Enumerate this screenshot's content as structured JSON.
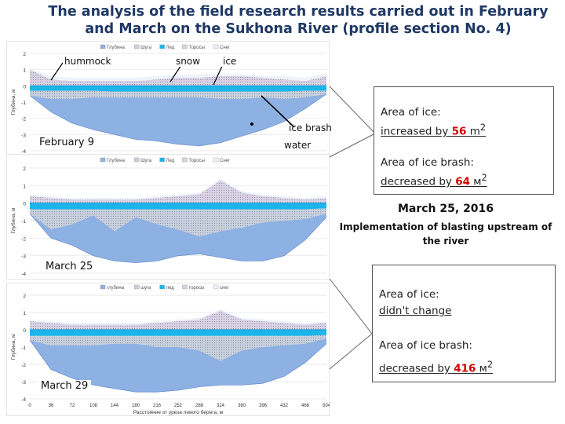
{
  "title": {
    "line1": "The analysis of the field research results carried out in February",
    "line2": "and March on the Sukhona River (profile section No. 4)"
  },
  "annotations": {
    "hummock": "hummock",
    "snow": "snow",
    "ice": "ice",
    "ice_brash": "ice brash",
    "water": "water"
  },
  "panels": {
    "feb9": "February 9",
    "mar25": "March 25",
    "mar29": "March 29"
  },
  "summary1": {
    "ice_label": "Area of ice:",
    "ice_pre": "increased by ",
    "ice_value": "56",
    "ice_unit": " m",
    "ice_sup": "2",
    "brash_label": "Area of ice brash:",
    "brash_pre": "decreased by ",
    "brash_value": "64",
    "brash_unit": " м",
    "brash_sup": "2"
  },
  "event": {
    "date": "March 25, 2016",
    "text": "Implementation of blasting upstream of the river"
  },
  "summary2": {
    "ice_label": "Area of ice:",
    "ice_status": "didn't change",
    "brash_label": "Area of ice brash:",
    "brash_pre": "decreased by ",
    "brash_value": "416",
    "brash_unit": " м",
    "brash_sup": "2"
  },
  "colors": {
    "depth": "#8eb1e3",
    "ice": "#1cb5ea",
    "ice_brash": "#c9d1de",
    "hummock": "#d8d2e4",
    "snow": "#eef3fb",
    "accent_red": "#d40000",
    "title": "#1f3864"
  },
  "chart_data": [
    {
      "type": "area",
      "panel": "February 9",
      "legend": [
        "Глубина",
        "Шуга",
        "Лед",
        "Торосы",
        "Снег"
      ],
      "ylabel": "Глубина, м",
      "ylim": [
        -4,
        2
      ],
      "yticks": [
        -4,
        -3,
        -2,
        -1,
        0,
        1,
        2
      ],
      "x": [
        0,
        36,
        72,
        108,
        144,
        180,
        216,
        252,
        288,
        324,
        360,
        396,
        432,
        468,
        504
      ],
      "series": [
        {
          "name": "Глубина",
          "values": [
            -0.6,
            -1.6,
            -2.3,
            -2.7,
            -3.0,
            -3.3,
            -3.4,
            -3.6,
            -3.7,
            -3.5,
            -3.1,
            -2.7,
            -2.2,
            -1.4,
            -0.5
          ]
        },
        {
          "name": "Шуга",
          "values": [
            -0.6,
            -0.8,
            -0.8,
            -0.7,
            -0.7,
            -0.7,
            -0.7,
            -0.7,
            -0.7,
            -0.8,
            -0.8,
            -0.7,
            -0.8,
            -0.7,
            -0.5
          ]
        },
        {
          "name": "Лед",
          "values": [
            -0.3,
            -0.3,
            -0.3,
            -0.3,
            -0.35,
            -0.35,
            -0.35,
            -0.35,
            -0.35,
            -0.35,
            -0.35,
            -0.35,
            -0.35,
            -0.3,
            -0.3
          ]
        },
        {
          "name": "Торосы",
          "values": [
            1.0,
            0.4,
            0.3,
            0.3,
            0.3,
            0.3,
            0.4,
            0.5,
            0.5,
            0.6,
            0.6,
            0.5,
            0.4,
            0.3,
            0.6
          ]
        },
        {
          "name": "Снег",
          "values": [
            1.1,
            0.6,
            0.5,
            0.5,
            0.5,
            0.5,
            0.6,
            0.7,
            0.7,
            0.8,
            0.7,
            0.6,
            0.6,
            0.5,
            0.8
          ]
        }
      ]
    },
    {
      "type": "area",
      "panel": "March 25",
      "legend": [
        "Глубина",
        "Шуга",
        "Лед",
        "Торосы",
        "Снег"
      ],
      "ylabel": "Глубина, м",
      "ylim": [
        -4,
        2
      ],
      "yticks": [
        -4,
        -3,
        -2,
        -1,
        0,
        1,
        2
      ],
      "x": [
        0,
        36,
        72,
        108,
        144,
        180,
        216,
        252,
        288,
        324,
        360,
        396,
        432,
        468,
        504
      ],
      "series": [
        {
          "name": "Глубина",
          "values": [
            -0.6,
            -2.0,
            -2.4,
            -3.0,
            -3.3,
            -3.4,
            -3.3,
            -3.0,
            -2.9,
            -3.1,
            -3.3,
            -3.3,
            -3.0,
            -2.1,
            -0.8
          ]
        },
        {
          "name": "Шуга",
          "values": [
            -0.6,
            -1.5,
            -1.2,
            -0.7,
            -1.6,
            -0.8,
            -1.2,
            -1.5,
            -1.9,
            -1.6,
            -1.4,
            -1.1,
            -1.0,
            -0.9,
            -0.6
          ]
        },
        {
          "name": "Лед",
          "values": [
            -0.35,
            -0.35,
            -0.35,
            -0.35,
            -0.35,
            -0.35,
            -0.35,
            -0.35,
            -0.35,
            -0.35,
            -0.35,
            -0.35,
            -0.35,
            -0.35,
            -0.3
          ]
        },
        {
          "name": "Торосы",
          "values": [
            0.4,
            0.3,
            0.2,
            0.2,
            0.2,
            0.2,
            0.3,
            0.4,
            0.5,
            1.3,
            0.6,
            0.4,
            0.3,
            0.2,
            0.3
          ]
        },
        {
          "name": "Снег",
          "values": [
            0.5,
            0.4,
            0.3,
            0.3,
            0.3,
            0.3,
            0.4,
            0.5,
            0.6,
            1.4,
            0.7,
            0.5,
            0.4,
            0.3,
            0.4
          ]
        }
      ]
    },
    {
      "type": "area",
      "panel": "March 29",
      "legend": [
        "глубина",
        "шуга",
        "лед",
        "торосы",
        "снег"
      ],
      "ylabel": "Глубина, м",
      "xlabel": "Расстояние от уреза левого берега, м",
      "ylim": [
        -4,
        2
      ],
      "yticks": [
        -4,
        -3,
        -2,
        -1,
        0,
        1,
        2
      ],
      "x": [
        0,
        36,
        72,
        108,
        144,
        180,
        216,
        252,
        288,
        324,
        360,
        396,
        432,
        468,
        504
      ],
      "xticks": [
        0,
        36,
        72,
        108,
        144,
        180,
        216,
        252,
        288,
        324,
        360,
        396,
        432,
        468,
        504
      ],
      "series": [
        {
          "name": "глубина",
          "values": [
            -0.6,
            -2.3,
            -2.8,
            -3.2,
            -3.4,
            -3.6,
            -3.6,
            -3.5,
            -3.3,
            -3.2,
            -3.2,
            -3.1,
            -2.7,
            -1.9,
            -0.8
          ]
        },
        {
          "name": "шуга",
          "values": [
            -0.6,
            -0.9,
            -0.9,
            -0.9,
            -0.8,
            -0.8,
            -1.0,
            -1.0,
            -1.2,
            -1.8,
            -1.2,
            -1.0,
            -0.9,
            -0.8,
            -0.5
          ]
        },
        {
          "name": "лед",
          "values": [
            -0.35,
            -0.35,
            -0.35,
            -0.35,
            -0.35,
            -0.35,
            -0.35,
            -0.35,
            -0.35,
            -0.35,
            -0.35,
            -0.35,
            -0.35,
            -0.35,
            -0.3
          ]
        },
        {
          "name": "торосы",
          "values": [
            0.5,
            0.4,
            0.3,
            0.3,
            0.3,
            0.3,
            0.4,
            0.5,
            0.6,
            1.1,
            0.6,
            0.5,
            0.4,
            0.3,
            0.4
          ]
        },
        {
          "name": "снег",
          "values": [
            0.6,
            0.5,
            0.4,
            0.4,
            0.4,
            0.4,
            0.5,
            0.6,
            0.7,
            1.2,
            0.7,
            0.6,
            0.5,
            0.4,
            0.5
          ]
        }
      ]
    }
  ]
}
